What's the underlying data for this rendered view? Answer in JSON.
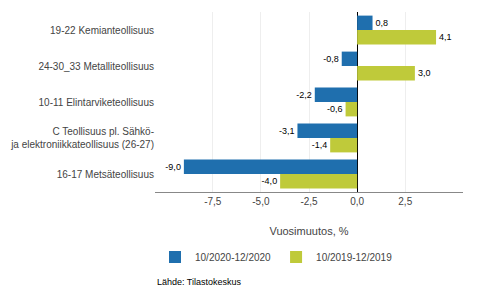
{
  "chart_data": {
    "type": "bar",
    "orientation": "horizontal",
    "categories": [
      "16-17 Metsäteollisuus",
      "C Teollisuus pl. Sähkö-\nja elektroniikkateollisuus (26-27)",
      "10-11 Elintarviketeollisuus",
      "24-30_33 Metalliteollisuus",
      "19-22 Kemianteollisuus"
    ],
    "series": [
      {
        "name": "10/2020-12/2020",
        "color": "#1F6FAE",
        "values": [
          -9.0,
          -3.1,
          -2.2,
          -0.8,
          0.8
        ],
        "value_labels": [
          "-9,0",
          "-3,1",
          "-2,2",
          "-0,8",
          "0,8"
        ]
      },
      {
        "name": "10/2019-12/2019",
        "color": "#BFCA3A",
        "values": [
          -4.0,
          -1.4,
          -0.6,
          3.0,
          4.1
        ],
        "value_labels": [
          "-4,0",
          "-1,4",
          "-0,6",
          "3,0",
          "4,1"
        ]
      }
    ],
    "xlabel": "Vuosimuutos, %",
    "xlim": [
      -10.5,
      5.5
    ],
    "xticks": [
      {
        "value": -7.5,
        "label": "-7,5"
      },
      {
        "value": -5.0,
        "label": "-5,0"
      },
      {
        "value": -2.5,
        "label": "-2,5"
      },
      {
        "value": 0.0,
        "label": "0,0"
      },
      {
        "value": 2.5,
        "label": "2,5"
      }
    ],
    "grid": true,
    "data_labels": true,
    "legend": "bottom",
    "annotations": [
      "Lähde: Tilastokeskus"
    ]
  }
}
